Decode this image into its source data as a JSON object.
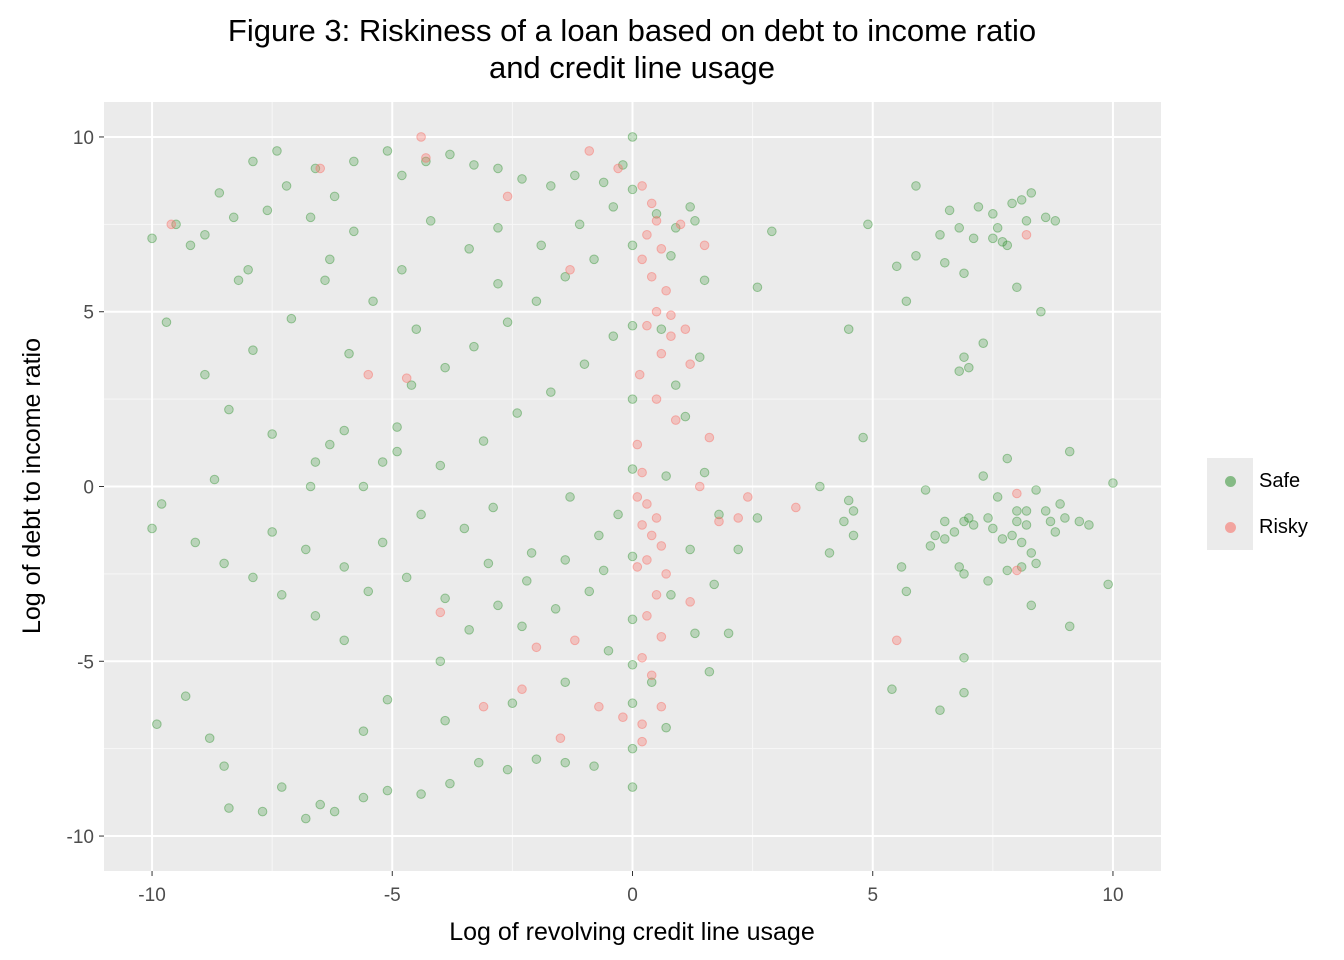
{
  "chart_data": {
    "type": "scatter",
    "title": "Figure 3: Riskiness of a loan based on debt to income ratio",
    "title_line2": "and credit line usage",
    "xlabel": "Log of revolving credit line usage",
    "ylabel": "Log of debt  to income ratio",
    "xlim": [
      -11,
      11
    ],
    "ylim": [
      -11,
      11
    ],
    "x_ticks": [
      -10,
      -5,
      0,
      5,
      10
    ],
    "x_tick_labels": [
      "-10",
      "-5",
      "0",
      "5",
      "10"
    ],
    "y_ticks": [
      -10,
      -5,
      0,
      5,
      10
    ],
    "y_tick_labels": [
      "-10",
      "-5",
      "0",
      "5",
      "10"
    ],
    "grid": true,
    "legend_position": "right",
    "series": [
      {
        "name": "Safe",
        "color": "#228b22",
        "opacity": 0.25,
        "points": [
          [
            -10,
            7.1
          ],
          [
            -9.7,
            4.7
          ],
          [
            -9.5,
            7.5
          ],
          [
            -9.2,
            6.9
          ],
          [
            -8.9,
            7.2
          ],
          [
            -8.6,
            8.4
          ],
          [
            -8.3,
            7.7
          ],
          [
            -8,
            6.2
          ],
          [
            -7.6,
            7.9
          ],
          [
            -7.2,
            8.6
          ],
          [
            -7.4,
            9.6
          ],
          [
            -7.9,
            9.3
          ],
          [
            -8.2,
            5.9
          ],
          [
            -6.6,
            9.1
          ],
          [
            -6.2,
            8.3
          ],
          [
            -5.8,
            9.3
          ],
          [
            -5.1,
            9.6
          ],
          [
            -4.8,
            8.9
          ],
          [
            -4.3,
            9.3
          ],
          [
            -3.8,
            9.5
          ],
          [
            -3.3,
            9.2
          ],
          [
            -2.8,
            9.1
          ],
          [
            -2.3,
            8.8
          ],
          [
            -1.7,
            8.6
          ],
          [
            -1.2,
            8.9
          ],
          [
            -0.6,
            8.7
          ],
          [
            -0.2,
            9.2
          ],
          [
            0,
            10
          ],
          [
            -9.8,
            -0.5
          ],
          [
            -10,
            -1.2
          ],
          [
            -9.9,
            -6.8
          ],
          [
            -9.3,
            -6
          ],
          [
            -8.8,
            -7.2
          ],
          [
            -8.4,
            -9.2
          ],
          [
            -8.5,
            -8
          ],
          [
            -7.7,
            -9.3
          ],
          [
            -7.3,
            -8.6
          ],
          [
            -6.8,
            -9.5
          ],
          [
            -6.5,
            -9.1
          ],
          [
            -6.2,
            -9.3
          ],
          [
            -5.6,
            -8.9
          ],
          [
            -5.1,
            -8.7
          ],
          [
            -4.4,
            -8.8
          ],
          [
            -3.8,
            -8.5
          ],
          [
            -3.2,
            -7.9
          ],
          [
            -2.6,
            -8.1
          ],
          [
            -2,
            -7.8
          ],
          [
            -1.4,
            -7.9
          ],
          [
            -0.8,
            -8.0
          ],
          [
            0,
            -8.6
          ],
          [
            0,
            -7.5
          ],
          [
            0,
            -6.2
          ],
          [
            -8.9,
            3.2
          ],
          [
            -8.4,
            2.2
          ],
          [
            -7.9,
            3.9
          ],
          [
            -8.7,
            0.2
          ],
          [
            -7.5,
            1.5
          ],
          [
            -6.7,
            0.0
          ],
          [
            -6.6,
            0.7
          ],
          [
            -6.3,
            1.2
          ],
          [
            -6.0,
            1.6
          ],
          [
            -5.6,
            0.0
          ],
          [
            -5.2,
            0.7
          ],
          [
            -4.9,
            1.7
          ],
          [
            -4.6,
            2.9
          ],
          [
            -3.9,
            3.4
          ],
          [
            -3.3,
            4.0
          ],
          [
            -2.6,
            4.7
          ],
          [
            -2.0,
            5.3
          ],
          [
            -1.4,
            6.0
          ],
          [
            -0.8,
            6.5
          ],
          [
            -3.4,
            6.8
          ],
          [
            -2.8,
            7.4
          ],
          [
            -4.8,
            6.2
          ],
          [
            -4.2,
            7.6
          ],
          [
            -5.8,
            7.3
          ],
          [
            -6.7,
            7.7
          ],
          [
            -6.3,
            6.5
          ],
          [
            -3.4,
            -4.1
          ],
          [
            -2.8,
            -3.4
          ],
          [
            -2.2,
            -2.7
          ],
          [
            -1.4,
            -2.1
          ],
          [
            -0.7,
            -1.4
          ],
          [
            -4.0,
            -5.0
          ],
          [
            -5.1,
            -6.1
          ],
          [
            -5.6,
            -7.0
          ],
          [
            -3.9,
            -6.7
          ],
          [
            -2.5,
            -6.2
          ],
          [
            -1.4,
            -5.6
          ],
          [
            -0.5,
            -4.7
          ],
          [
            -7.5,
            -1.3
          ],
          [
            -6.8,
            -1.8
          ],
          [
            -6.0,
            -2.3
          ],
          [
            -5.2,
            -1.6
          ],
          [
            -4.4,
            -0.8
          ],
          [
            -3.5,
            -1.2
          ],
          [
            -2.9,
            -0.6
          ],
          [
            -2.1,
            -1.9
          ],
          [
            -1.3,
            -0.3
          ],
          [
            -0.6,
            -2.4
          ],
          [
            -9.1,
            -1.6
          ],
          [
            -8.5,
            -2.2
          ],
          [
            -7.9,
            -2.6
          ],
          [
            -7.3,
            -3.1
          ],
          [
            -6.6,
            -3.7
          ],
          [
            -6.0,
            -4.4
          ],
          [
            -5.5,
            -3.0
          ],
          [
            -4.7,
            -2.6
          ],
          [
            -3.9,
            -3.2
          ],
          [
            -3.0,
            -2.2
          ],
          [
            -2.3,
            -4.0
          ],
          [
            -1.6,
            -3.5
          ],
          [
            -0.9,
            -3.0
          ],
          [
            -0.3,
            -0.8
          ],
          [
            -4.0,
            0.6
          ],
          [
            -3.1,
            1.3
          ],
          [
            -2.4,
            2.1
          ],
          [
            -1.7,
            2.7
          ],
          [
            -1.0,
            3.5
          ],
          [
            -0.4,
            4.3
          ],
          [
            -2.8,
            5.8
          ],
          [
            -1.9,
            6.9
          ],
          [
            -1.1,
            7.5
          ],
          [
            -0.4,
            8.0
          ],
          [
            -4.5,
            4.5
          ],
          [
            -5.4,
            5.3
          ],
          [
            -6.4,
            5.9
          ],
          [
            -7.1,
            4.8
          ],
          [
            -5.9,
            3.8
          ],
          [
            -4.9,
            1.0
          ],
          [
            0,
            0.5
          ],
          [
            0,
            2.5
          ],
          [
            0,
            4.6
          ],
          [
            0,
            6.9
          ],
          [
            0,
            8.5
          ],
          [
            0,
            -2.0
          ],
          [
            0,
            -3.8
          ],
          [
            0,
            -5.1
          ],
          [
            0.5,
            7.8
          ],
          [
            0.9,
            7.4
          ],
          [
            1.3,
            7.6
          ],
          [
            1.5,
            5.9
          ],
          [
            1.2,
            8.0
          ],
          [
            0.8,
            6.6
          ],
          [
            0.6,
            4.5
          ],
          [
            1.4,
            3.7
          ],
          [
            0.9,
            2.9
          ],
          [
            1.1,
            2.0
          ],
          [
            0.7,
            0.3
          ],
          [
            1.5,
            0.4
          ],
          [
            1.8,
            -0.8
          ],
          [
            1.2,
            -1.8
          ],
          [
            0.8,
            -3.1
          ],
          [
            1.7,
            -2.8
          ],
          [
            1.3,
            -4.2
          ],
          [
            0.4,
            -5.6
          ],
          [
            1.6,
            -5.3
          ],
          [
            0.7,
            -6.9
          ],
          [
            2.0,
            -4.2
          ],
          [
            2.6,
            5.7
          ],
          [
            2.9,
            7.3
          ],
          [
            2.6,
            -0.9
          ],
          [
            2.2,
            -1.8
          ],
          [
            3.9,
            0.0
          ],
          [
            4.1,
            -1.9
          ],
          [
            4.5,
            4.5
          ],
          [
            4.5,
            -0.4
          ],
          [
            4.4,
            -1.0
          ],
          [
            4.6,
            -1.4
          ],
          [
            4.8,
            1.4
          ],
          [
            4.9,
            7.5
          ],
          [
            5.5,
            6.3
          ],
          [
            5.7,
            5.3
          ],
          [
            5.7,
            -3.0
          ],
          [
            5.9,
            8.6
          ],
          [
            5.6,
            -2.3
          ],
          [
            6.1,
            -0.1
          ],
          [
            6.3,
            -1.4
          ],
          [
            6.5,
            -1.5
          ],
          [
            6.2,
            -1.7
          ],
          [
            6.5,
            6.4
          ],
          [
            6.6,
            7.9
          ],
          [
            6.8,
            7.4
          ],
          [
            6.9,
            3.7
          ],
          [
            7.0,
            3.4
          ],
          [
            6.8,
            3.3
          ],
          [
            6.9,
            6.1
          ],
          [
            6.8,
            -2.3
          ],
          [
            6.9,
            -1.0
          ],
          [
            7.0,
            -0.9
          ],
          [
            7.1,
            -1.1
          ],
          [
            6.5,
            -1.0
          ],
          [
            6.9,
            -2.5
          ],
          [
            6.9,
            -4.9
          ],
          [
            6.9,
            -5.9
          ],
          [
            7.1,
            7.1
          ],
          [
            7.2,
            8.0
          ],
          [
            7.3,
            4.1
          ],
          [
            7.5,
            7.1
          ],
          [
            7.5,
            7.8
          ],
          [
            7.6,
            7.4
          ],
          [
            7.7,
            7.0
          ],
          [
            7.8,
            6.9
          ],
          [
            7.9,
            8.1
          ],
          [
            8.1,
            8.2
          ],
          [
            8.0,
            5.7
          ],
          [
            8.2,
            7.6
          ],
          [
            8.3,
            8.4
          ],
          [
            8.5,
            5.0
          ],
          [
            8.6,
            7.7
          ],
          [
            8.8,
            7.6
          ],
          [
            7.3,
            0.3
          ],
          [
            7.4,
            -0.9
          ],
          [
            7.6,
            -0.3
          ],
          [
            7.8,
            0.8
          ],
          [
            8.0,
            -1.0
          ],
          [
            8.1,
            -1.6
          ],
          [
            8.2,
            -0.7
          ],
          [
            8.3,
            -1.9
          ],
          [
            8.3,
            -3.4
          ],
          [
            8.4,
            -0.1
          ],
          [
            8.6,
            -0.7
          ],
          [
            8.8,
            -1.3
          ],
          [
            8.9,
            -0.5
          ],
          [
            9.0,
            -0.9
          ],
          [
            9.1,
            -4.0
          ],
          [
            9.3,
            -1.0
          ],
          [
            9.5,
            -1.1
          ],
          [
            9.9,
            -2.8
          ],
          [
            10.0,
            0.1
          ],
          [
            9.1,
            1.0
          ],
          [
            8.2,
            -1.1
          ],
          [
            7.5,
            -1.2
          ],
          [
            7.4,
            -2.7
          ],
          [
            6.4,
            -6.4
          ],
          [
            5.4,
            -5.8
          ],
          [
            8.0,
            -0.7
          ],
          [
            7.9,
            -1.4
          ],
          [
            7.7,
            -1.5
          ],
          [
            7.8,
            -2.4
          ],
          [
            8.4,
            -2.2
          ],
          [
            8.7,
            -1.0
          ],
          [
            8.1,
            -2.3
          ],
          [
            6.7,
            -1.3
          ],
          [
            6.4,
            7.2
          ],
          [
            5.9,
            6.6
          ],
          [
            4.6,
            -0.7
          ]
        ]
      },
      {
        "name": "Risky",
        "color": "#f8766d",
        "opacity": 0.35,
        "points": [
          [
            -9.6,
            7.5
          ],
          [
            -6.5,
            9.1
          ],
          [
            -4.4,
            10.0
          ],
          [
            -4.3,
            9.4
          ],
          [
            -0.3,
            9.1
          ],
          [
            0.2,
            8.6
          ],
          [
            0.4,
            8.1
          ],
          [
            0.5,
            7.6
          ],
          [
            0.3,
            7.2
          ],
          [
            0.6,
            6.8
          ],
          [
            0.2,
            6.5
          ],
          [
            0.4,
            6.0
          ],
          [
            0.7,
            5.6
          ],
          [
            0.5,
            5.0
          ],
          [
            0.3,
            4.6
          ],
          [
            0.8,
            4.3
          ],
          [
            0.6,
            3.8
          ],
          [
            1.2,
            3.5
          ],
          [
            0.9,
            1.9
          ],
          [
            0.5,
            2.5
          ],
          [
            1.1,
            4.5
          ],
          [
            1.5,
            6.9
          ],
          [
            1.0,
            7.5
          ],
          [
            1.4,
            0.0
          ],
          [
            0.2,
            0.4
          ],
          [
            0.3,
            -0.5
          ],
          [
            0.5,
            -0.9
          ],
          [
            0.4,
            -1.4
          ],
          [
            0.6,
            -1.7
          ],
          [
            0.3,
            -2.1
          ],
          [
            0.7,
            -2.5
          ],
          [
            0.5,
            -3.1
          ],
          [
            0.3,
            -3.7
          ],
          [
            0.6,
            -4.3
          ],
          [
            0.2,
            -4.9
          ],
          [
            0.4,
            -5.4
          ],
          [
            0.6,
            -6.3
          ],
          [
            0.2,
            -7.3
          ],
          [
            0.1,
            -0.3
          ],
          [
            0.2,
            -1.1
          ],
          [
            0.1,
            -2.3
          ],
          [
            0.1,
            1.2
          ],
          [
            0.15,
            3.2
          ],
          [
            0.2,
            -6.8
          ],
          [
            -2.3,
            -5.8
          ],
          [
            -3.1,
            -6.3
          ],
          [
            -2.0,
            -4.6
          ],
          [
            -1.5,
            -7.2
          ],
          [
            -4.0,
            -3.6
          ],
          [
            -4.7,
            3.1
          ],
          [
            -5.5,
            3.2
          ],
          [
            -1.3,
            6.2
          ],
          [
            -2.6,
            8.3
          ],
          [
            -0.9,
            9.6
          ],
          [
            1.6,
            1.4
          ],
          [
            1.8,
            -1.0
          ],
          [
            2.2,
            -0.9
          ],
          [
            2.4,
            -0.3
          ],
          [
            3.4,
            -0.6
          ],
          [
            0.8,
            4.9
          ],
          [
            5.5,
            -4.4
          ],
          [
            8.0,
            -0.2
          ],
          [
            8.0,
            -2.4
          ],
          [
            8.2,
            7.2
          ],
          [
            -0.2,
            -6.6
          ],
          [
            -0.7,
            -6.3
          ],
          [
            1.2,
            -3.3
          ],
          [
            -1.2,
            -4.4
          ]
        ]
      }
    ]
  }
}
